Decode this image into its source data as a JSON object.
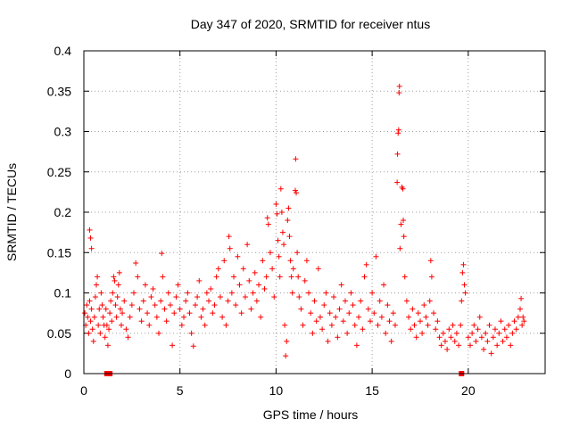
{
  "chart_data": {
    "type": "scatter",
    "title": "Day 347 of 2020, SRMTID for receiver ntus",
    "xlabel": "GPS time / hours",
    "ylabel": "SRMTID / TECUs",
    "xlim": [
      0,
      24
    ],
    "ylim": [
      0,
      0.4
    ],
    "x_ticks": [
      0,
      5,
      10,
      15,
      20
    ],
    "x_tick_labels": [
      "0",
      "5",
      "10",
      "15",
      "20"
    ],
    "y_ticks": [
      0,
      0.05,
      0.1,
      0.15,
      0.2,
      0.25,
      0.3,
      0.35,
      0.4
    ],
    "y_tick_labels": [
      "0",
      "0.05",
      "0.1",
      "0.15",
      "0.2",
      "0.25",
      "0.3",
      "0.35",
      "0.4"
    ],
    "grid": true,
    "marker": "+",
    "color": "#ff0000",
    "series": [
      {
        "name": "SRMTID",
        "points": [
          [
            0.05,
            0.075
          ],
          [
            0.1,
            0.06
          ],
          [
            0.15,
            0.085
          ],
          [
            0.2,
            0.07
          ],
          [
            0.25,
            0.05
          ],
          [
            0.3,
            0.09
          ],
          [
            0.35,
            0.065
          ],
          [
            0.4,
            0.08
          ],
          [
            0.3,
            0.178
          ],
          [
            0.35,
            0.168
          ],
          [
            0.4,
            0.155
          ],
          [
            0.45,
            0.055
          ],
          [
            0.5,
            0.04
          ],
          [
            0.55,
            0.07
          ],
          [
            0.6,
            0.095
          ],
          [
            0.65,
            0.11
          ],
          [
            0.7,
            0.12
          ],
          [
            0.75,
            0.06
          ],
          [
            0.8,
            0.08
          ],
          [
            0.85,
            0.05
          ],
          [
            0.9,
            0.1
          ],
          [
            0.95,
            0.085
          ],
          [
            1.0,
            0.07
          ],
          [
            1.05,
            0.06
          ],
          [
            1.1,
            0.045
          ],
          [
            1.15,
            0.08
          ],
          [
            1.2,
            0.06
          ],
          [
            1.25,
            0.035
          ],
          [
            1.3,
            0.055
          ],
          [
            1.35,
            0.075
          ],
          [
            1.4,
            0.09
          ],
          [
            1.45,
            0.065
          ],
          [
            1.5,
            0.1
          ],
          [
            1.55,
            0.12
          ],
          [
            1.6,
            0.115
          ],
          [
            1.65,
            0.085
          ],
          [
            1.7,
            0.07
          ],
          [
            1.75,
            0.095
          ],
          [
            1.8,
            0.11
          ],
          [
            1.85,
            0.125
          ],
          [
            1.9,
            0.08
          ],
          [
            1.95,
            0.06
          ],
          [
            2.0,
            0.075
          ],
          [
            2.1,
            0.09
          ],
          [
            2.2,
            0.055
          ],
          [
            2.3,
            0.045
          ],
          [
            2.4,
            0.07
          ],
          [
            2.5,
            0.085
          ],
          [
            2.6,
            0.1
          ],
          [
            2.7,
            0.137
          ],
          [
            2.8,
            0.12
          ],
          [
            2.9,
            0.08
          ],
          [
            3.0,
            0.065
          ],
          [
            3.1,
            0.09
          ],
          [
            3.2,
            0.11
          ],
          [
            3.3,
            0.075
          ],
          [
            3.4,
            0.06
          ],
          [
            3.5,
            0.095
          ],
          [
            3.6,
            0.105
          ],
          [
            3.7,
            0.085
          ],
          [
            3.8,
            0.07
          ],
          [
            3.9,
            0.05
          ],
          [
            4.0,
            0.09
          ],
          [
            4.05,
            0.149
          ],
          [
            4.1,
            0.12
          ],
          [
            4.2,
            0.08
          ],
          [
            4.3,
            0.065
          ],
          [
            4.4,
            0.1
          ],
          [
            4.5,
            0.085
          ],
          [
            4.6,
            0.035
          ],
          [
            4.7,
            0.075
          ],
          [
            4.8,
            0.095
          ],
          [
            4.9,
            0.11
          ],
          [
            5.0,
            0.08
          ],
          [
            5.1,
            0.06
          ],
          [
            5.2,
            0.07
          ],
          [
            5.3,
            0.09
          ],
          [
            5.4,
            0.1
          ],
          [
            5.5,
            0.075
          ],
          [
            5.6,
            0.05
          ],
          [
            5.7,
            0.034
          ],
          [
            5.8,
            0.085
          ],
          [
            5.9,
            0.095
          ],
          [
            6.0,
            0.115
          ],
          [
            6.1,
            0.07
          ],
          [
            6.2,
            0.08
          ],
          [
            6.3,
            0.06
          ],
          [
            6.4,
            0.1
          ],
          [
            6.5,
            0.09
          ],
          [
            6.6,
            0.105
          ],
          [
            6.7,
            0.075
          ],
          [
            6.8,
            0.085
          ],
          [
            6.9,
            0.12
          ],
          [
            7.0,
            0.13
          ],
          [
            7.1,
            0.095
          ],
          [
            7.2,
            0.07
          ],
          [
            7.3,
            0.14
          ],
          [
            7.4,
            0.06
          ],
          [
            7.5,
            0.09
          ],
          [
            7.55,
            0.17
          ],
          [
            7.6,
            0.155
          ],
          [
            7.7,
            0.1
          ],
          [
            7.8,
            0.12
          ],
          [
            7.9,
            0.085
          ],
          [
            8.0,
            0.145
          ],
          [
            8.1,
            0.11
          ],
          [
            8.2,
            0.075
          ],
          [
            8.3,
            0.13
          ],
          [
            8.4,
            0.095
          ],
          [
            8.5,
            0.16
          ],
          [
            8.6,
            0.115
          ],
          [
            8.7,
            0.08
          ],
          [
            8.8,
            0.1
          ],
          [
            8.9,
            0.125
          ],
          [
            9.0,
            0.09
          ],
          [
            9.1,
            0.11
          ],
          [
            9.2,
            0.07
          ],
          [
            9.3,
            0.14
          ],
          [
            9.4,
            0.105
          ],
          [
            9.5,
            0.12
          ],
          [
            9.55,
            0.193
          ],
          [
            9.6,
            0.185
          ],
          [
            9.7,
            0.15
          ],
          [
            9.8,
            0.13
          ],
          [
            9.9,
            0.095
          ],
          [
            10.0,
            0.21
          ],
          [
            10.05,
            0.198
          ],
          [
            10.1,
            0.165
          ],
          [
            10.15,
            0.145
          ],
          [
            10.2,
            0.12
          ],
          [
            10.25,
            0.229
          ],
          [
            10.3,
            0.2
          ],
          [
            10.35,
            0.175
          ],
          [
            10.4,
            0.16
          ],
          [
            10.45,
            0.06
          ],
          [
            10.5,
            0.022
          ],
          [
            10.55,
            0.04
          ],
          [
            10.6,
            0.19
          ],
          [
            10.65,
            0.205
          ],
          [
            10.7,
            0.17
          ],
          [
            10.75,
            0.14
          ],
          [
            10.8,
            0.12
          ],
          [
            10.85,
            0.1
          ],
          [
            10.9,
            0.13
          ],
          [
            11.0,
            0.227
          ],
          [
            11.02,
            0.266
          ],
          [
            11.05,
            0.224
          ],
          [
            11.1,
            0.15
          ],
          [
            11.15,
            0.12
          ],
          [
            11.2,
            0.095
          ],
          [
            11.3,
            0.08
          ],
          [
            11.4,
            0.06
          ],
          [
            11.5,
            0.115
          ],
          [
            11.6,
            0.14
          ],
          [
            11.7,
            0.1
          ],
          [
            11.8,
            0.075
          ],
          [
            11.9,
            0.05
          ],
          [
            12.0,
            0.09
          ],
          [
            12.1,
            0.065
          ],
          [
            12.2,
            0.13
          ],
          [
            12.3,
            0.07
          ],
          [
            12.4,
            0.055
          ],
          [
            12.5,
            0.085
          ],
          [
            12.6,
            0.1
          ],
          [
            12.7,
            0.04
          ],
          [
            12.8,
            0.075
          ],
          [
            12.9,
            0.06
          ],
          [
            13.0,
            0.095
          ],
          [
            13.1,
            0.07
          ],
          [
            13.2,
            0.045
          ],
          [
            13.3,
            0.08
          ],
          [
            13.4,
            0.11
          ],
          [
            13.5,
            0.065
          ],
          [
            13.6,
            0.09
          ],
          [
            13.7,
            0.05
          ],
          [
            13.8,
            0.075
          ],
          [
            13.9,
            0.1
          ],
          [
            14.0,
            0.085
          ],
          [
            14.1,
            0.06
          ],
          [
            14.2,
            0.035
          ],
          [
            14.3,
            0.07
          ],
          [
            14.4,
            0.09
          ],
          [
            14.5,
            0.055
          ],
          [
            14.6,
            0.12
          ],
          [
            14.7,
            0.135
          ],
          [
            14.8,
            0.08
          ],
          [
            14.9,
            0.065
          ],
          [
            15.0,
            0.1
          ],
          [
            15.1,
            0.075
          ],
          [
            15.2,
            0.145
          ],
          [
            15.3,
            0.06
          ],
          [
            15.4,
            0.09
          ],
          [
            15.5,
            0.07
          ],
          [
            15.6,
            0.11
          ],
          [
            15.7,
            0.05
          ],
          [
            15.8,
            0.085
          ],
          [
            15.9,
            0.065
          ],
          [
            16.0,
            0.04
          ],
          [
            16.1,
            0.075
          ],
          [
            16.2,
            0.06
          ],
          [
            16.3,
            0.237
          ],
          [
            16.32,
            0.272
          ],
          [
            16.35,
            0.298
          ],
          [
            16.38,
            0.302
          ],
          [
            16.4,
            0.348
          ],
          [
            16.42,
            0.356
          ],
          [
            16.45,
            0.155
          ],
          [
            16.5,
            0.185
          ],
          [
            16.55,
            0.231
          ],
          [
            16.6,
            0.229
          ],
          [
            16.62,
            0.19
          ],
          [
            16.65,
            0.17
          ],
          [
            16.7,
            0.12
          ],
          [
            16.8,
            0.09
          ],
          [
            16.9,
            0.07
          ],
          [
            17.0,
            0.055
          ],
          [
            17.1,
            0.08
          ],
          [
            17.2,
            0.06
          ],
          [
            17.3,
            0.045
          ],
          [
            17.4,
            0.075
          ],
          [
            17.5,
            0.065
          ],
          [
            17.6,
            0.05
          ],
          [
            17.7,
            0.085
          ],
          [
            17.8,
            0.07
          ],
          [
            17.9,
            0.06
          ],
          [
            18.0,
            0.09
          ],
          [
            18.05,
            0.14
          ],
          [
            18.1,
            0.12
          ],
          [
            18.2,
            0.075
          ],
          [
            18.3,
            0.055
          ],
          [
            18.4,
            0.065
          ],
          [
            18.5,
            0.045
          ],
          [
            18.6,
            0.035
          ],
          [
            18.7,
            0.05
          ],
          [
            18.8,
            0.04
          ],
          [
            18.9,
            0.03
          ],
          [
            19.0,
            0.055
          ],
          [
            19.1,
            0.045
          ],
          [
            19.2,
            0.06
          ],
          [
            19.3,
            0.04
          ],
          [
            19.4,
            0.05
          ],
          [
            19.5,
            0.035
          ],
          [
            19.6,
            0.06
          ],
          [
            19.65,
            0.09
          ],
          [
            19.7,
            0.125
          ],
          [
            19.75,
            0.135
          ],
          [
            19.8,
            0.11
          ],
          [
            19.85,
            0.1
          ],
          [
            20.0,
            0.045
          ],
          [
            20.1,
            0.035
          ],
          [
            20.2,
            0.05
          ],
          [
            20.3,
            0.06
          ],
          [
            20.4,
            0.04
          ],
          [
            20.5,
            0.055
          ],
          [
            20.6,
            0.07
          ],
          [
            20.7,
            0.045
          ],
          [
            20.8,
            0.03
          ],
          [
            20.9,
            0.05
          ],
          [
            21.0,
            0.04
          ],
          [
            21.1,
            0.06
          ],
          [
            21.2,
            0.025
          ],
          [
            21.3,
            0.045
          ],
          [
            21.4,
            0.055
          ],
          [
            21.5,
            0.035
          ],
          [
            21.6,
            0.05
          ],
          [
            21.7,
            0.065
          ],
          [
            21.8,
            0.04
          ],
          [
            21.9,
            0.055
          ],
          [
            22.0,
            0.045
          ],
          [
            22.1,
            0.06
          ],
          [
            22.2,
            0.035
          ],
          [
            22.3,
            0.05
          ],
          [
            22.4,
            0.065
          ],
          [
            22.5,
            0.055
          ],
          [
            22.6,
            0.07
          ],
          [
            22.7,
            0.08
          ],
          [
            22.75,
            0.093
          ],
          [
            22.8,
            0.06
          ],
          [
            22.85,
            0.07
          ],
          [
            22.9,
            0.065
          ]
        ]
      }
    ],
    "baseline_markers_x": [
      1.2,
      1.35,
      19.65
    ]
  }
}
